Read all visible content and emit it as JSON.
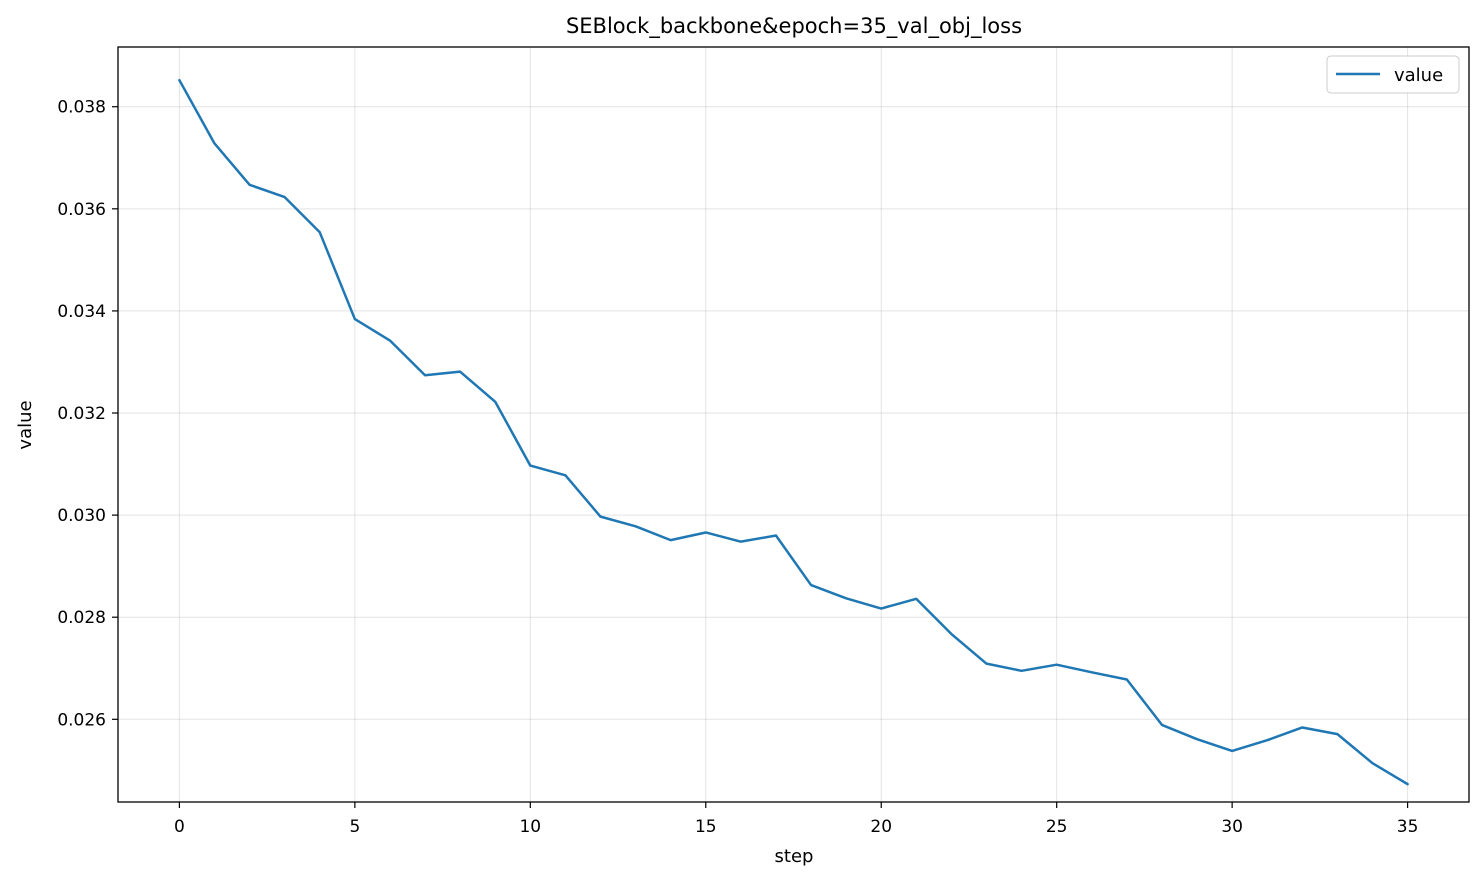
{
  "chart_data": {
    "type": "line",
    "title": "SEBlock_backbone&epoch=35_val_obj_loss",
    "xlabel": "step",
    "ylabel": "value",
    "xlim": [
      -1.75,
      36.75
    ],
    "ylim": [
      0.02438,
      0.03917
    ],
    "xticks": [
      0,
      5,
      10,
      15,
      20,
      25,
      30,
      35
    ],
    "yticks": [
      0.026,
      0.028,
      0.03,
      0.032,
      0.034,
      0.036,
      0.038
    ],
    "ytick_labels": [
      "0.026",
      "0.028",
      "0.030",
      "0.032",
      "0.034",
      "0.036",
      "0.038"
    ],
    "grid": true,
    "legend_position": "top-right",
    "series": [
      {
        "name": "value",
        "color": "#1f77b4",
        "x": [
          0,
          1,
          2,
          3,
          4,
          5,
          6,
          7,
          8,
          9,
          10,
          11,
          12,
          13,
          14,
          15,
          16,
          17,
          18,
          19,
          20,
          21,
          22,
          23,
          24,
          25,
          26,
          27,
          28,
          29,
          30,
          31,
          32,
          33,
          34,
          35
        ],
        "y": [
          0.03852,
          0.03728,
          0.03647,
          0.03623,
          0.03554,
          0.03384,
          0.03342,
          0.03274,
          0.03281,
          0.03222,
          0.03097,
          0.03078,
          0.02997,
          0.02978,
          0.02951,
          0.02966,
          0.02948,
          0.0296,
          0.02863,
          0.02837,
          0.02817,
          0.02836,
          0.02767,
          0.02709,
          0.02695,
          0.02707,
          0.02692,
          0.02678,
          0.02589,
          0.02561,
          0.02538,
          0.02559,
          0.02584,
          0.02571,
          0.02514,
          0.02473
        ]
      }
    ]
  }
}
